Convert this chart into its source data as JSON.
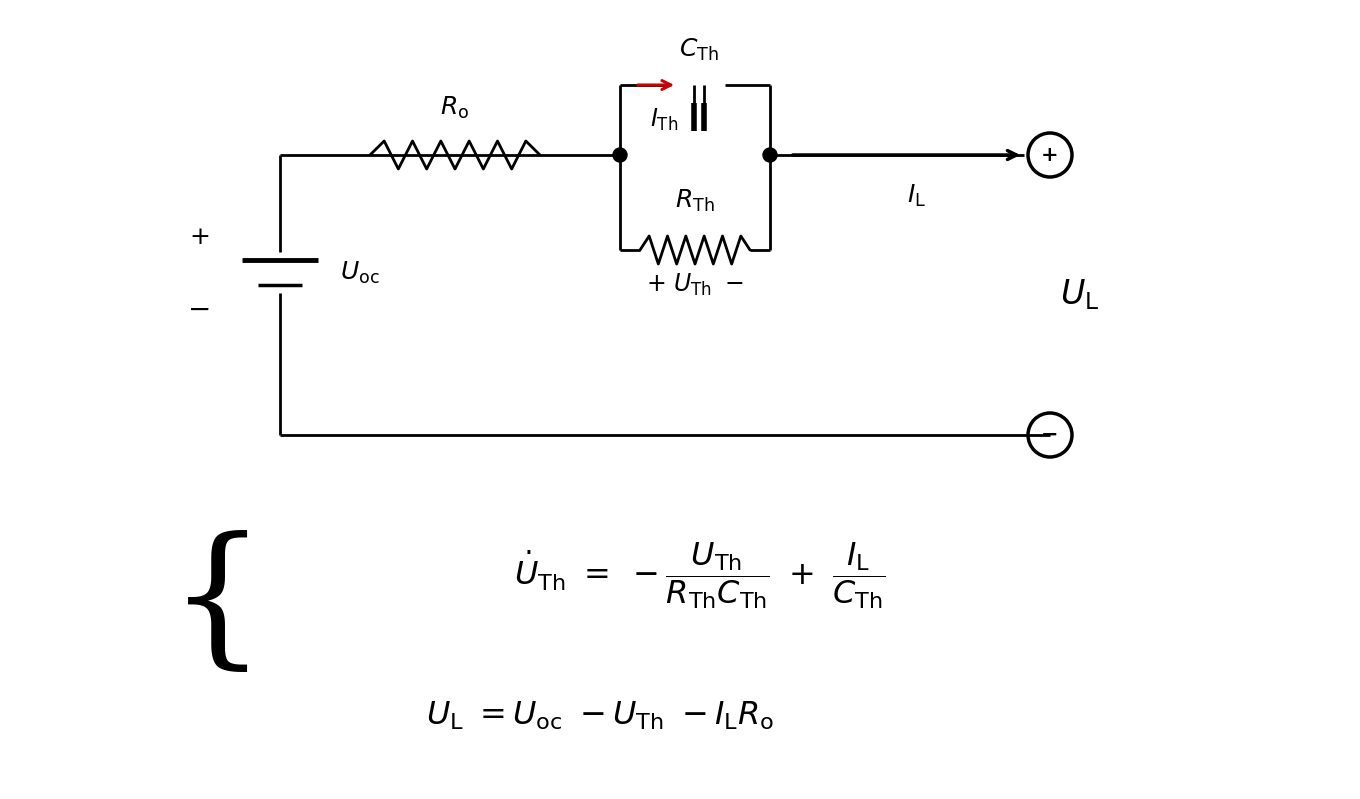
{
  "bg_color": "#ffffff",
  "line_color": "#000000",
  "red_color": "#cc0000",
  "lw": 2.0
}
